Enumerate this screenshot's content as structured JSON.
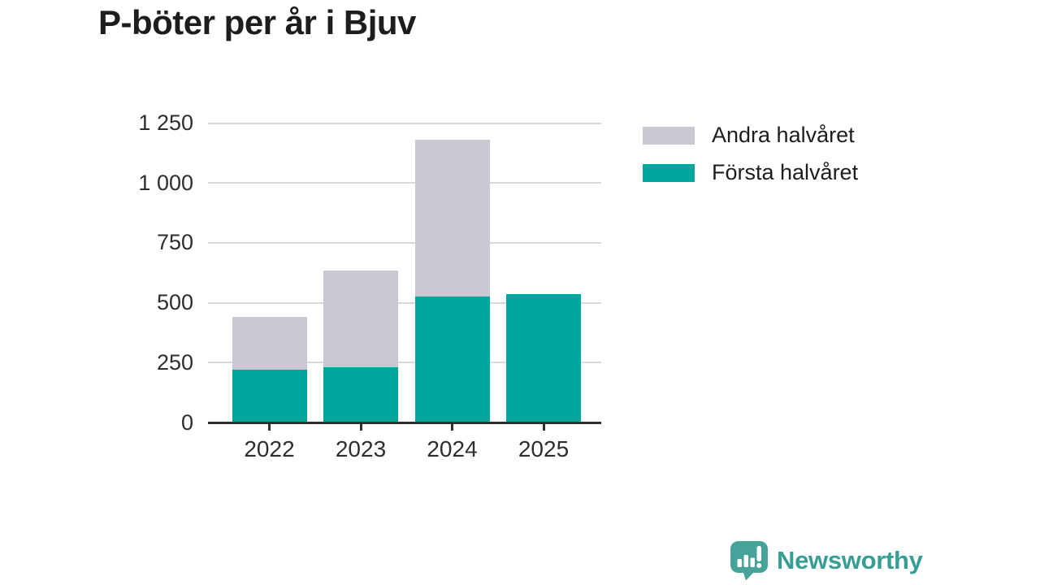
{
  "title": "P-böter per år i Bjuv",
  "colors": {
    "first_half": "#00a59c",
    "second_half": "#c9c7d1",
    "gridline": "#d9d9dc",
    "axis": "#2f2f2f",
    "tick_text": "#2e2e2e",
    "title_text": "#1d1d1d",
    "brand_icon": "#45a39a",
    "brand_text": "#379e95"
  },
  "legend": {
    "items": [
      {
        "label": "Andra halvåret",
        "color_key": "second_half"
      },
      {
        "label": "Första halvåret",
        "color_key": "first_half"
      }
    ]
  },
  "logo": {
    "text": "Newsworthy",
    "icon": "speech-bubble-bar-chart-exclamation"
  },
  "chart_data": {
    "type": "bar",
    "stacked": true,
    "title": "P-böter per år i Bjuv",
    "categories": [
      "2022",
      "2023",
      "2024",
      "2025"
    ],
    "series": [
      {
        "name": "Första halvåret",
        "color_key": "first_half",
        "values": [
          220,
          230,
          525,
          535
        ]
      },
      {
        "name": "Andra halvåret",
        "color_key": "second_half",
        "values": [
          220,
          405,
          655,
          0
        ]
      }
    ],
    "totals": [
      440,
      635,
      1180,
      535
    ],
    "xlabel": "",
    "ylabel": "",
    "ylim": [
      0,
      1250
    ],
    "yticks": [
      0,
      250,
      500,
      750,
      1000,
      1250
    ],
    "ytick_labels": [
      "0",
      "250",
      "500",
      "750",
      "1 000",
      "1 250"
    ],
    "grid": true,
    "legend_position": "right-top"
  }
}
